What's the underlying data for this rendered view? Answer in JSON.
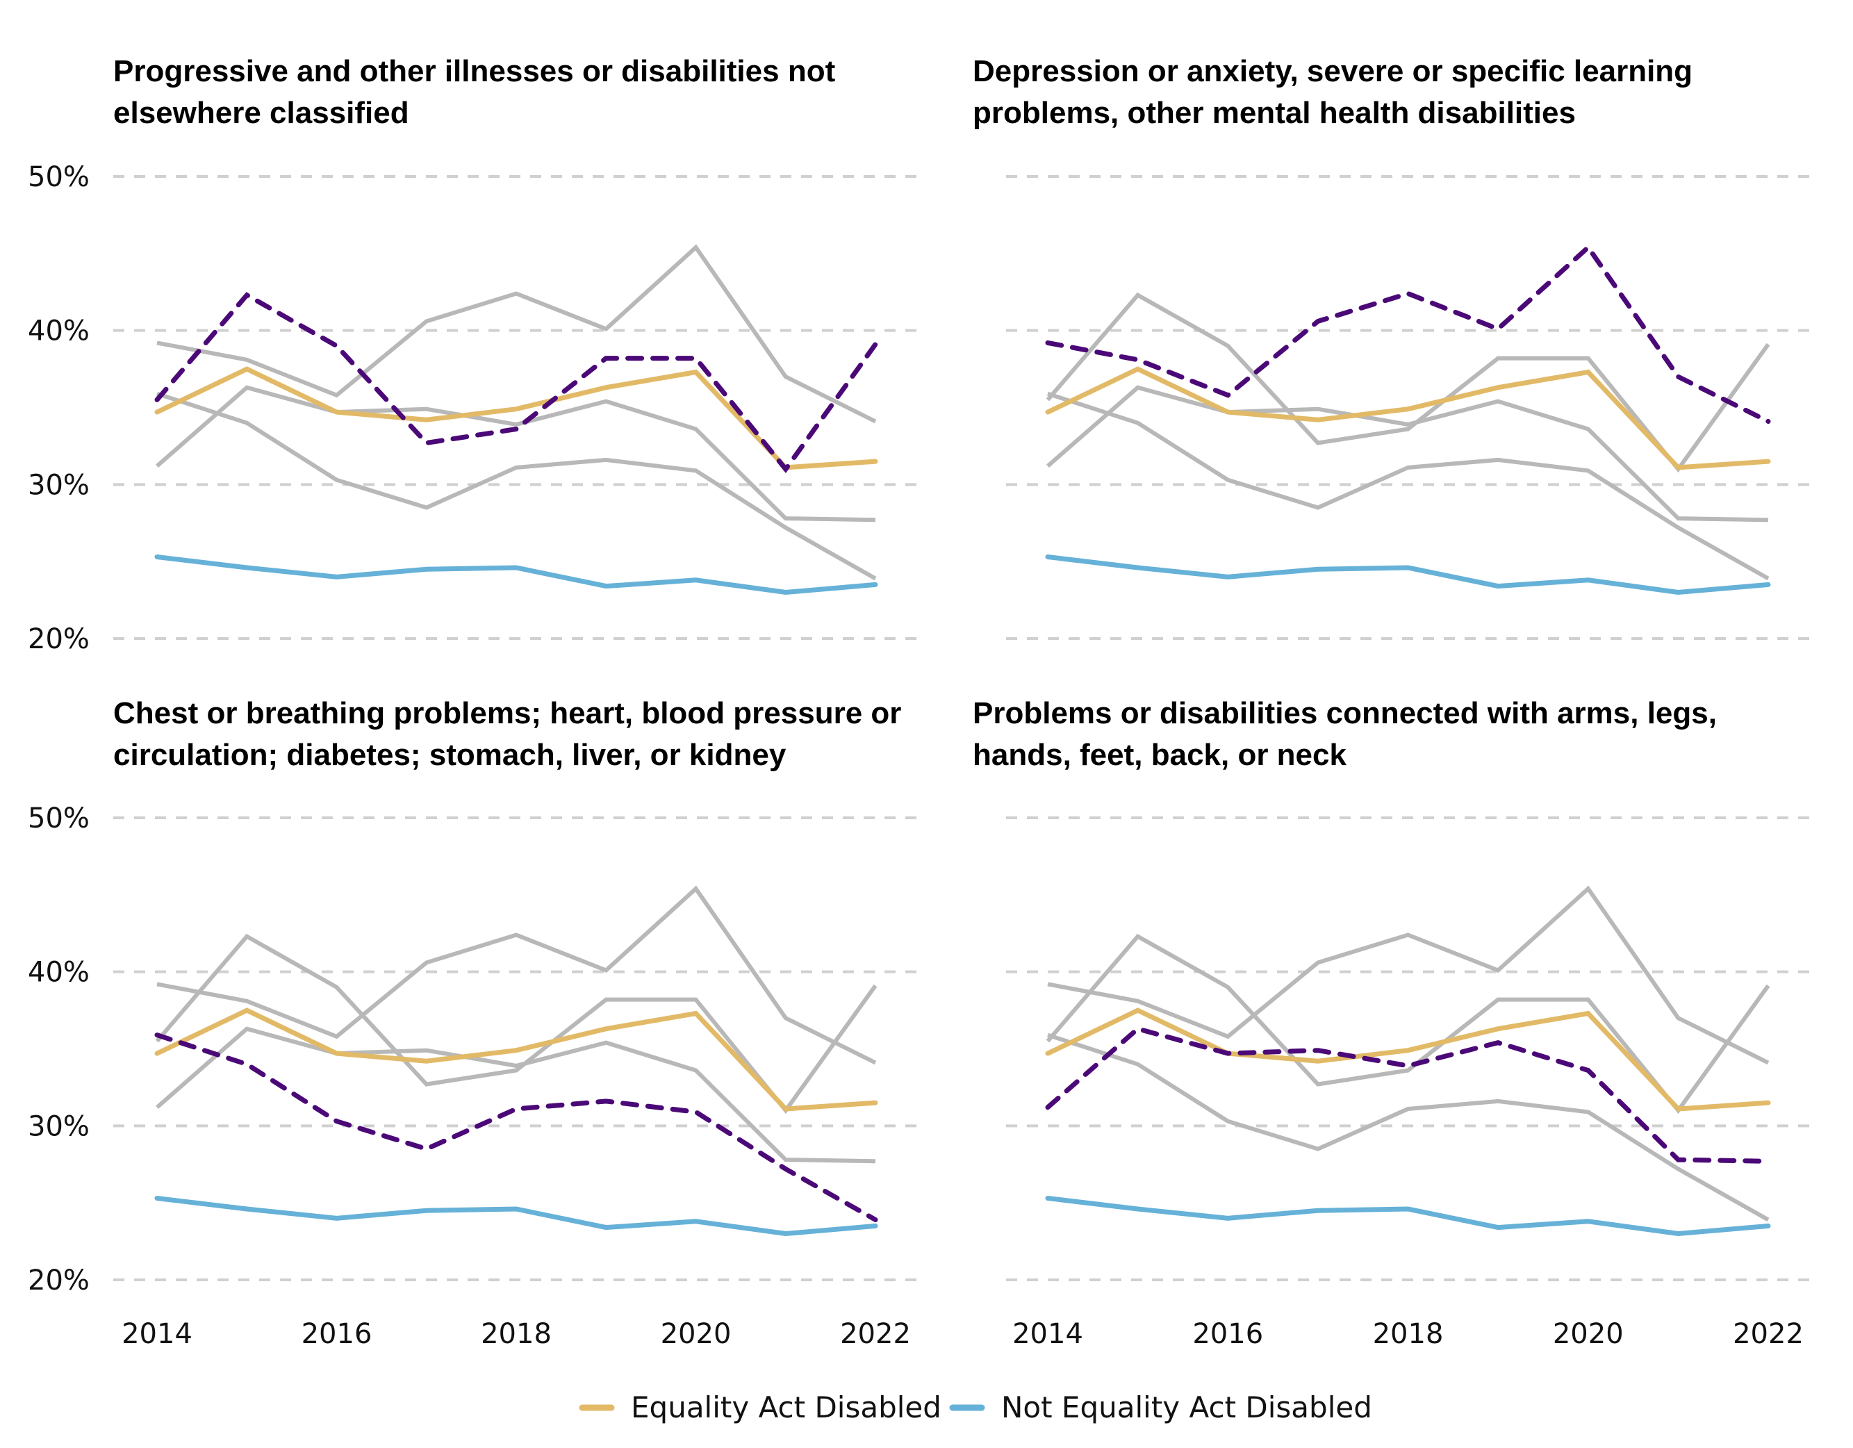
{
  "chart_data": {
    "type": "line",
    "layout": "2x2 small multiples",
    "x": [
      2014,
      2015,
      2016,
      2017,
      2018,
      2019,
      2020,
      2021,
      2022
    ],
    "x_tick_labels": [
      "2014",
      "2016",
      "2018",
      "2020",
      "2022"
    ],
    "y_tick_labels": [
      "50%",
      "40%",
      "30%",
      "20%"
    ],
    "y_ticks": [
      50,
      40,
      30,
      20
    ],
    "ylim": [
      20,
      50
    ],
    "grid": true,
    "grid_style": "dashed horizontal",
    "legend_position": "bottom-center",
    "colors": {
      "equality_act_disabled": "#E2BA67",
      "not_equality_act_disabled": "#66B1D8",
      "highlight": "#4B0978",
      "other": "#B8B8B8",
      "grid": "#D0D0D0"
    },
    "legend": [
      {
        "name": "Equality Act Disabled",
        "color_key": "equality_act_disabled"
      },
      {
        "name": "Not Equality Act Disabled",
        "color_key": "not_equality_act_disabled"
      }
    ],
    "reference_series": [
      {
        "name": "Equality Act Disabled",
        "values": [
          34.7,
          37.5,
          34.7,
          34.2,
          34.9,
          36.3,
          37.3,
          31.1,
          31.5
        ]
      },
      {
        "name": "Not Equality Act Disabled",
        "values": [
          25.3,
          24.6,
          24.0,
          24.5,
          24.6,
          23.4,
          23.8,
          23.0,
          23.5
        ]
      }
    ],
    "category_series": [
      {
        "id": "progressive",
        "name": "Progressive and other illnesses or disabilities not elsewhere classified",
        "values": [
          35.5,
          42.3,
          39.0,
          32.7,
          33.6,
          38.2,
          38.2,
          31.0,
          39.1
        ]
      },
      {
        "id": "mental",
        "name": "Depression or anxiety, severe or specific learning problems, other mental health disabilities",
        "values": [
          39.2,
          38.1,
          35.8,
          40.6,
          42.4,
          40.1,
          45.4,
          37.0,
          34.1
        ]
      },
      {
        "id": "chest",
        "name": "Chest or breathing problems; heart, blood pressure or circulation; diabetes; stomach, liver, or kidney",
        "values": [
          35.9,
          34.0,
          30.3,
          28.5,
          31.1,
          31.6,
          30.9,
          27.2,
          23.9
        ]
      },
      {
        "id": "limbs",
        "name": "Problems or disabilities connected with arms, legs, hands, feet, back, or neck",
        "values": [
          31.2,
          36.3,
          34.7,
          34.9,
          33.9,
          35.4,
          33.6,
          27.8,
          27.7
        ]
      }
    ],
    "panels": [
      {
        "title_lines": [
          "Progressive and other illnesses or disabilities not",
          "elsewhere classified"
        ],
        "highlight": "progressive"
      },
      {
        "title_lines": [
          "Depression or anxiety, severe or specific learning",
          "problems, other mental health disabilities"
        ],
        "highlight": "mental"
      },
      {
        "title_lines": [
          "Chest or breathing problems; heart, blood pressure or",
          "circulation; diabetes; stomach, liver, or kidney"
        ],
        "highlight": "chest"
      },
      {
        "title_lines": [
          "Problems or disabilities connected with arms, legs,",
          "hands, feet, back, or neck"
        ],
        "highlight": "limbs"
      }
    ]
  }
}
